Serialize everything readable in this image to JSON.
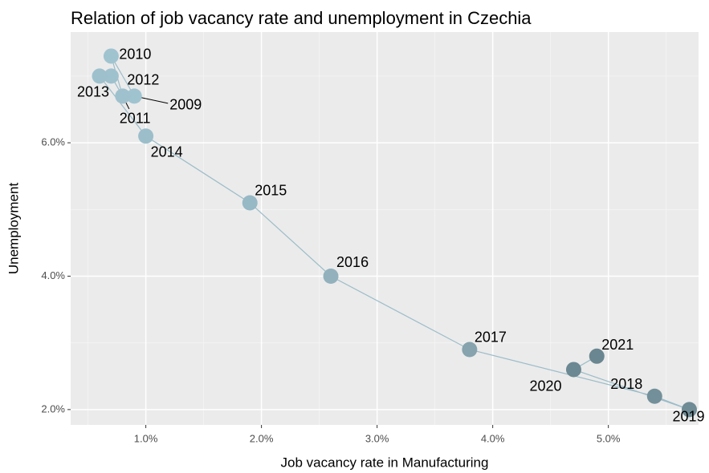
{
  "chart_data": {
    "type": "scatter",
    "title": "Relation of job vacancy rate and unemployment in Czechia",
    "x_label": "Job vacancy rate in Manufacturing",
    "y_label": "Unemployment",
    "labels": [
      "2009",
      "2010",
      "2011",
      "2012",
      "2013",
      "2014",
      "2015",
      "2016",
      "2017",
      "2018",
      "2019",
      "2020",
      "2021"
    ],
    "x": [
      0.9,
      0.7,
      0.8,
      0.7,
      0.6,
      1.0,
      1.9,
      2.6,
      3.8,
      5.4,
      5.7,
      4.7,
      4.9
    ],
    "values": [
      6.7,
      7.3,
      6.7,
      7.0,
      7.0,
      6.1,
      5.1,
      4.0,
      2.9,
      2.2,
      2.0,
      2.6,
      2.8
    ],
    "colors": [
      "#a0c3d0",
      "#a0c3d0",
      "#9fc1ce",
      "#9fc1ce",
      "#9ec0cd",
      "#9cbecb",
      "#97b8c5",
      "#92b1bd",
      "#86a3ae",
      "#73909a",
      "#6f8b95",
      "#6c8892",
      "#6a8690"
    ],
    "line_color": "#9bbcc9",
    "xlim": [
      0.35,
      5.78
    ],
    "ylim": [
      1.77,
      7.66
    ],
    "xticks": [
      {
        "value": 1,
        "label": "1.0%"
      },
      {
        "value": 2,
        "label": "2.0%"
      },
      {
        "value": 3,
        "label": "3.0%"
      },
      {
        "value": 4,
        "label": "4.0%"
      },
      {
        "value": 5,
        "label": "5.0%"
      }
    ],
    "yticks": [
      {
        "value": 2,
        "label": "2.0%"
      },
      {
        "value": 4,
        "label": "4.0%"
      },
      {
        "value": 6,
        "label": "6.0%"
      }
    ],
    "x_minor_ticks": [
      0.5,
      1.5,
      2.5,
      3.5,
      4.5,
      5.5
    ],
    "y_minor_ticks": [
      3,
      5,
      7
    ],
    "grid": true
  }
}
